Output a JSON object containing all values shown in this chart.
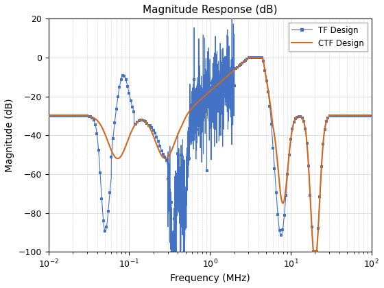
{
  "title": "Magnitude Response (dB)",
  "xlabel": "Frequency (MHz)",
  "ylabel": "Magnitude (dB)",
  "xlim": [
    0.01,
    100
  ],
  "ylim": [
    -100,
    20
  ],
  "yticks": [
    -100,
    -80,
    -60,
    -40,
    -20,
    0,
    20
  ],
  "tf_color": "#4472c4",
  "ctf_color": "#d2691e",
  "background_color": "#ffffff",
  "legend_labels": [
    "TF Design",
    "CTF Design"
  ]
}
